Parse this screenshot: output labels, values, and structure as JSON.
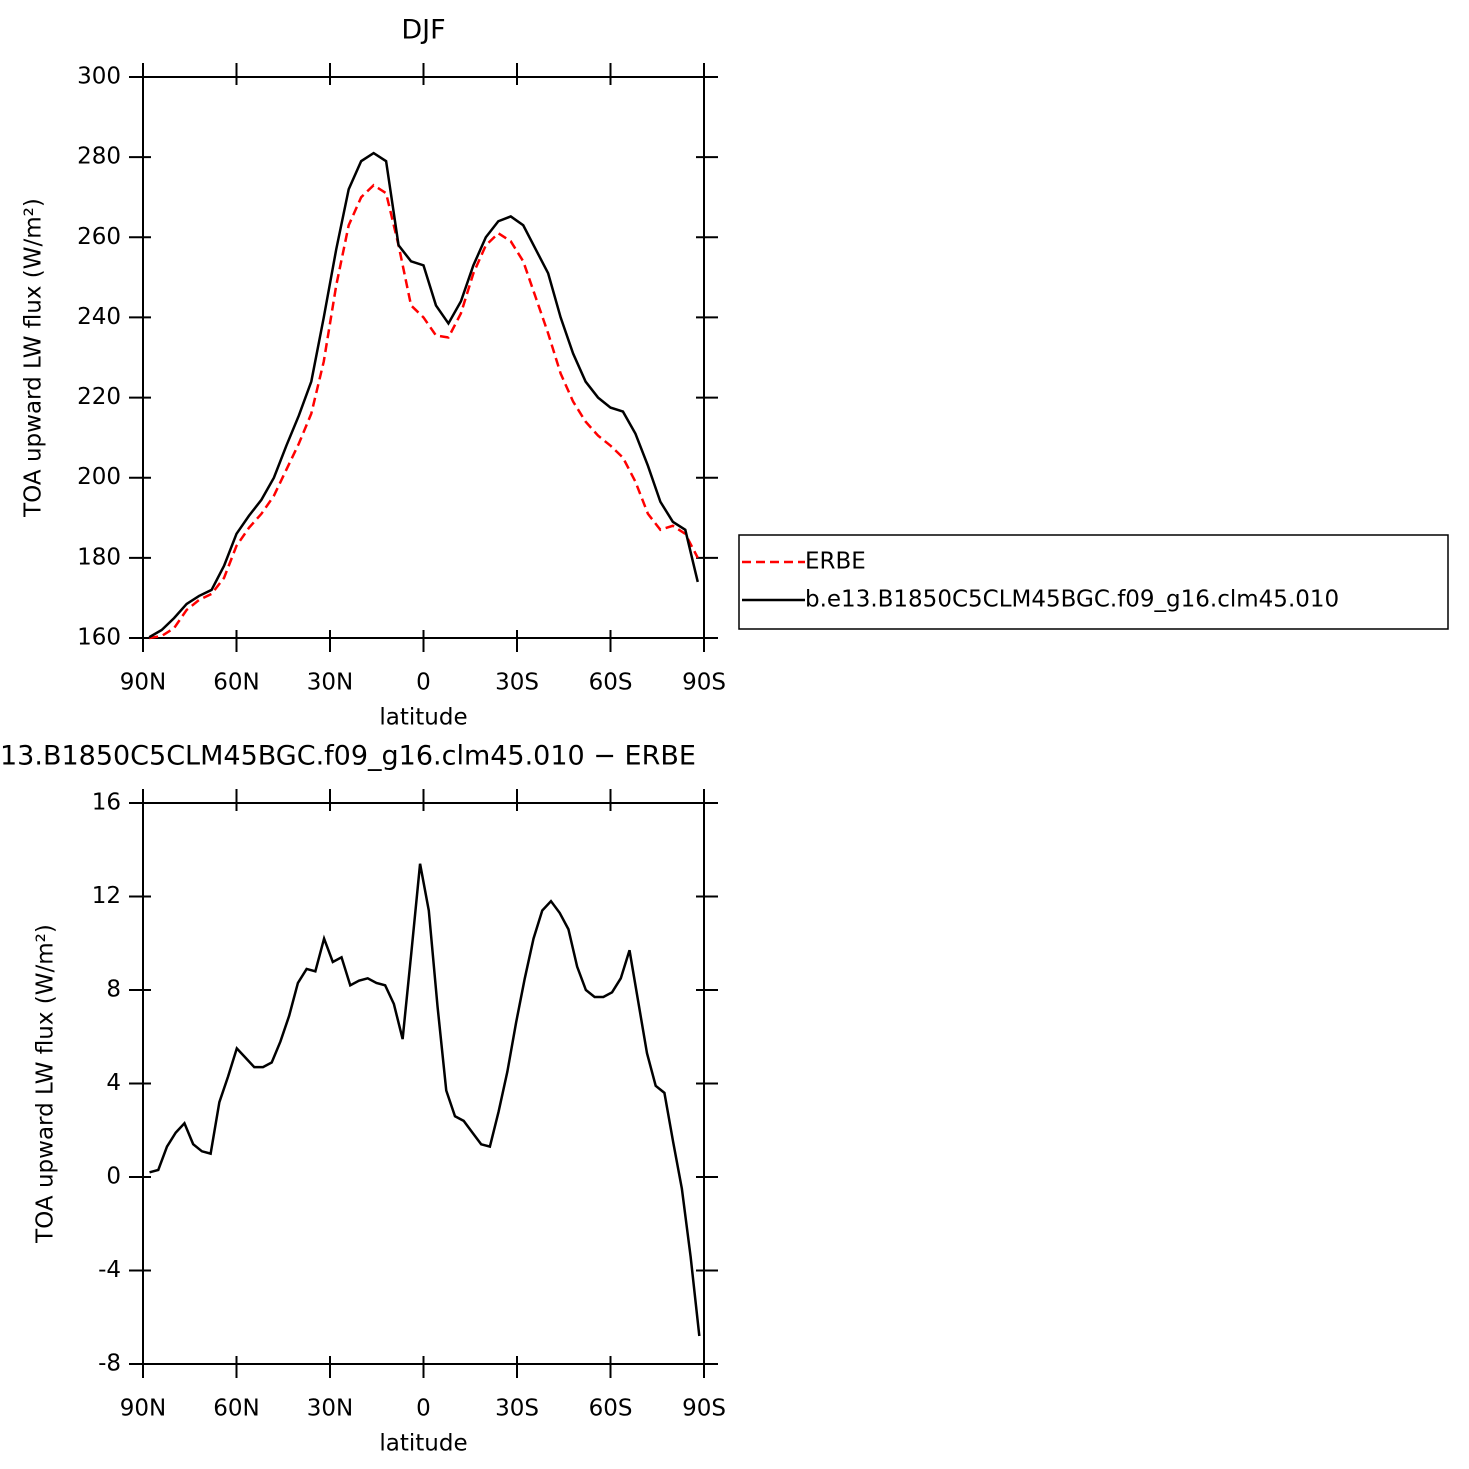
{
  "chart_data": [
    {
      "type": "line",
      "title": "DJF",
      "xlabel": "latitude",
      "ylabel": "TOA upward LW flux (W/m²)",
      "xlim": [
        90,
        -90
      ],
      "xticks": [
        {
          "value": 90,
          "label": "90N"
        },
        {
          "value": 60,
          "label": "60N"
        },
        {
          "value": 30,
          "label": "30N"
        },
        0,
        {
          "value": -30,
          "label": "30S"
        },
        {
          "value": -60,
          "label": "60S"
        },
        {
          "value": -90,
          "label": "90S"
        }
      ],
      "ylim": [
        160,
        300
      ],
      "yticks": [
        160,
        180,
        200,
        220,
        240,
        260,
        280,
        300
      ],
      "legend": "right",
      "x": [
        88,
        84,
        80,
        76,
        72,
        68,
        64,
        60,
        56,
        52,
        48,
        44,
        40,
        36,
        32,
        28,
        24,
        20,
        16,
        12,
        8,
        4,
        0,
        -4,
        -8,
        -12,
        -16,
        -20,
        -24,
        -28,
        -32,
        -36,
        -40,
        -44,
        -48,
        -52,
        -56,
        -60,
        -64,
        -68,
        -72,
        -76,
        -80,
        -84,
        -88
      ],
      "series": [
        {
          "name": "ERBE",
          "color": "#ff0000",
          "linestyle": "dashed",
          "values": [
            160,
            160.5,
            162.5,
            167,
            169.5,
            171,
            175,
            183,
            187.5,
            191,
            195.5,
            202,
            208.5,
            216,
            229,
            248,
            263,
            270,
            273,
            271,
            258,
            243,
            240,
            235.5,
            235,
            241,
            251,
            258,
            261,
            259,
            254,
            245,
            236,
            226,
            219,
            214,
            210.5,
            208,
            205,
            199,
            191,
            187,
            188,
            186,
            180
          ]
        },
        {
          "name": "b.e13.B1850C5CLM45BGC.f09_g16.clm45.010",
          "color": "#000000",
          "linestyle": "solid",
          "values": [
            160.2,
            162,
            165,
            168.5,
            170.5,
            172,
            178,
            186,
            190.5,
            194.5,
            200,
            208,
            215.5,
            224,
            240,
            257,
            272,
            279,
            281,
            279,
            258,
            254,
            253,
            243,
            238.5,
            244,
            253,
            260,
            264,
            265.2,
            263,
            257,
            251,
            240,
            231,
            224,
            220,
            217.5,
            216.5,
            211,
            203,
            194,
            189,
            187,
            174
          ]
        }
      ]
    },
    {
      "type": "line",
      "title": "13.B1850C5CLM45BGC.f09_g16.clm45.010 − ERBE",
      "xlabel": "latitude",
      "ylabel": "TOA upward LW flux (W/m²)",
      "xlim": [
        90,
        -90
      ],
      "xticks": [
        {
          "value": 90,
          "label": "90N"
        },
        {
          "value": 60,
          "label": "60N"
        },
        {
          "value": 30,
          "label": "30N"
        },
        0,
        {
          "value": -30,
          "label": "30S"
        },
        {
          "value": -60,
          "label": "60S"
        },
        {
          "value": -90,
          "label": "90S"
        }
      ],
      "ylim": [
        -8,
        16
      ],
      "yticks": [
        -8,
        -4,
        0,
        4,
        8,
        12,
        16
      ],
      "x": [
        87.9,
        85.1,
        82.3,
        79.5,
        76.7,
        73.9,
        71.1,
        68.3,
        65.5,
        62.7,
        59.9,
        57.1,
        54.3,
        51.5,
        48.7,
        45.9,
        43.1,
        40.3,
        37.5,
        34.7,
        31.9,
        29.1,
        26.3,
        23.5,
        20.7,
        17.9,
        15.1,
        12.3,
        9.5,
        6.7,
        3.9,
        1.1,
        -1.7,
        -4.5,
        -7.3,
        -10.1,
        -12.9,
        -15.7,
        -18.5,
        -21.3,
        -24.1,
        -26.9,
        -29.7,
        -32.5,
        -35.3,
        -38.1,
        -40.9,
        -43.7,
        -46.5,
        -49.3,
        -52.1,
        -54.9,
        -57.7,
        -60.5,
        -63.3,
        -66.1,
        -68.9,
        -71.7,
        -74.5,
        -77.3,
        -80.1,
        -82.9,
        -85.7,
        -88.5
      ],
      "series": [
        {
          "color": "#000000",
          "linestyle": "solid",
          "values": [
            0.2,
            0.3,
            1.3,
            1.9,
            2.3,
            1.4,
            1.1,
            1.0,
            3.2,
            4.3,
            5.5,
            5.1,
            4.7,
            4.7,
            4.9,
            5.8,
            6.9,
            8.3,
            8.9,
            8.8,
            10.2,
            9.2,
            9.4,
            8.2,
            8.4,
            8.5,
            8.3,
            8.2,
            7.4,
            5.9,
            9.6,
            13.4,
            11.4,
            7.3,
            3.7,
            2.6,
            2.4,
            1.9,
            1.4,
            1.3,
            2.8,
            4.5,
            6.6,
            8.5,
            10.2,
            11.4,
            11.8,
            11.3,
            10.6,
            9.0,
            8.0,
            7.7,
            7.7,
            7.9,
            8.5,
            9.7,
            7.5,
            5.3,
            3.9,
            3.6,
            1.5,
            -0.5,
            -3.4,
            -6.8
          ]
        }
      ]
    }
  ]
}
